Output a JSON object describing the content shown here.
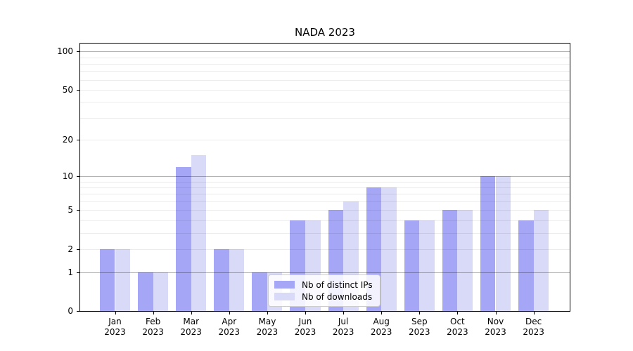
{
  "chart_data": {
    "type": "bar",
    "title": "NADA 2023",
    "categories": [
      "Jan",
      "Feb",
      "Mar",
      "Apr",
      "May",
      "Jun",
      "Jul",
      "Aug",
      "Sep",
      "Oct",
      "Nov",
      "Dec"
    ],
    "year": "2023",
    "series": [
      {
        "name": "Nb of distinct IPs",
        "color": "#a6a6f6",
        "values": [
          2,
          1,
          12,
          2,
          1,
          4,
          5,
          8,
          4,
          5,
          10,
          4
        ]
      },
      {
        "name": "Nb of downloads",
        "color": "#d9d9f8",
        "values": [
          2,
          1,
          15,
          2,
          1,
          4,
          6,
          8,
          4,
          5,
          10,
          5
        ]
      }
    ],
    "y_axis": {
      "scale": "log1p",
      "tick_labels": [
        "0",
        "1",
        "2",
        "5",
        "10",
        "20",
        "50",
        "100"
      ],
      "tick_values": [
        0,
        1,
        2,
        5,
        10,
        20,
        50,
        100
      ],
      "major_gridlines": [
        1,
        10,
        100
      ],
      "minor_gridlines": [
        2,
        3,
        4,
        5,
        6,
        7,
        8,
        9,
        20,
        30,
        40,
        50,
        60,
        70,
        80,
        90
      ],
      "ylim": [
        0,
        116
      ]
    },
    "legend": {
      "items": [
        "Nb of distinct IPs",
        "Nb of downloads"
      ],
      "position": "lower-center"
    },
    "grid": true
  },
  "colors": {
    "bar_distinct_ips": "#a6a6f6",
    "bar_downloads": "#d9d9f8",
    "major_grid": "rgba(0,0,0,0.30)",
    "minor_grid": "rgba(0,0,0,0.075)",
    "spine": "#000000",
    "legend_border": "#cccccc",
    "background": "#ffffff"
  }
}
